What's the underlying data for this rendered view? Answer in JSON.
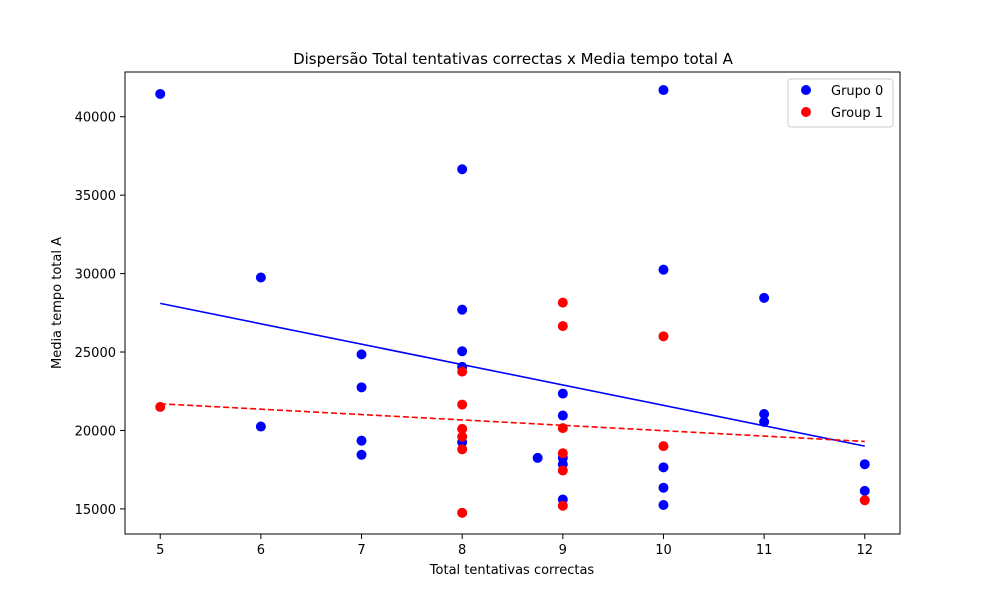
{
  "chart_data": {
    "type": "scatter",
    "title": "Dispersão Total tentativas correctas x Media tempo total A",
    "xlabel": "Total tentativas correctas",
    "ylabel": "Media tempo total A",
    "xlim": [
      4.65,
      12.35
    ],
    "ylim": [
      13400,
      42850
    ],
    "xticks": [
      5,
      6,
      7,
      8,
      9,
      10,
      11,
      12
    ],
    "yticks": [
      15000,
      20000,
      25000,
      30000,
      35000,
      40000
    ],
    "legend_position": "upper right",
    "series": [
      {
        "name": "Grupo 0",
        "color": "#0000ff",
        "points": [
          [
            5,
            41450
          ],
          [
            6,
            29750
          ],
          [
            6,
            20250
          ],
          [
            7,
            24850
          ],
          [
            7,
            22750
          ],
          [
            7,
            19350
          ],
          [
            7,
            18450
          ],
          [
            8,
            36650
          ],
          [
            8,
            27700
          ],
          [
            8,
            25050
          ],
          [
            8,
            24050
          ],
          [
            8,
            19250
          ],
          [
            8.75,
            18250
          ],
          [
            9,
            22350
          ],
          [
            9,
            20950
          ],
          [
            9,
            18250
          ],
          [
            9,
            17850
          ],
          [
            9,
            15600
          ],
          [
            10,
            41700
          ],
          [
            10,
            30250
          ],
          [
            10,
            17650
          ],
          [
            10,
            16350
          ],
          [
            10,
            15250
          ],
          [
            11,
            28450
          ],
          [
            11,
            21050
          ],
          [
            11,
            20550
          ],
          [
            12,
            17850
          ],
          [
            12,
            16150
          ]
        ],
        "trend": {
          "x": [
            5,
            12
          ],
          "y": [
            28100,
            19000
          ],
          "style": "solid"
        }
      },
      {
        "name": "Group 1",
        "color": "#ff0000",
        "points": [
          [
            5,
            21500
          ],
          [
            8,
            23750
          ],
          [
            8,
            21650
          ],
          [
            8,
            20100
          ],
          [
            8,
            19600
          ],
          [
            8,
            18800
          ],
          [
            8,
            14750
          ],
          [
            9,
            28150
          ],
          [
            9,
            26650
          ],
          [
            9,
            20150
          ],
          [
            9,
            18550
          ],
          [
            9,
            17450
          ],
          [
            9,
            15200
          ],
          [
            10,
            26000
          ],
          [
            10,
            19000
          ],
          [
            12,
            15550
          ]
        ],
        "trend": {
          "x": [
            5,
            12
          ],
          "y": [
            21700,
            19300
          ],
          "style": "dashed"
        }
      }
    ]
  }
}
